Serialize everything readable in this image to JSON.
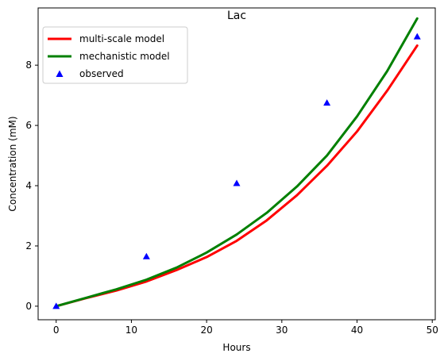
{
  "chart_data": {
    "type": "line",
    "title": "Lac",
    "xlabel": "Hours",
    "ylabel": "Concentration (mM)",
    "xlim": [
      -2.4,
      50.4
    ],
    "ylim": [
      -0.45,
      9.9
    ],
    "xticks": [
      0,
      10,
      20,
      30,
      40,
      50
    ],
    "yticks": [
      0,
      2,
      4,
      6,
      8
    ],
    "grid": false,
    "legend_position": "top-left",
    "series": [
      {
        "name": "multi-scale model",
        "style": "line",
        "color": "#ff0000",
        "x": [
          0,
          4,
          8,
          12,
          16,
          20,
          24,
          28,
          32,
          36,
          40,
          44,
          48
        ],
        "y": [
          0,
          0.27,
          0.52,
          0.82,
          1.2,
          1.63,
          2.17,
          2.85,
          3.68,
          4.66,
          5.8,
          7.15,
          8.65
        ]
      },
      {
        "name": "mechanistic model",
        "style": "line",
        "color": "#008000",
        "x": [
          0,
          4,
          8,
          12,
          16,
          20,
          24,
          28,
          32,
          36,
          40,
          44,
          48
        ],
        "y": [
          0,
          0.28,
          0.56,
          0.88,
          1.28,
          1.78,
          2.38,
          3.1,
          3.97,
          5.0,
          6.3,
          7.8,
          9.55
        ]
      },
      {
        "name": "observed",
        "style": "marker-triangle",
        "color": "#0000ff",
        "x": [
          0,
          12,
          24,
          36,
          48
        ],
        "y": [
          0,
          1.65,
          4.08,
          6.75,
          8.95
        ]
      }
    ]
  }
}
